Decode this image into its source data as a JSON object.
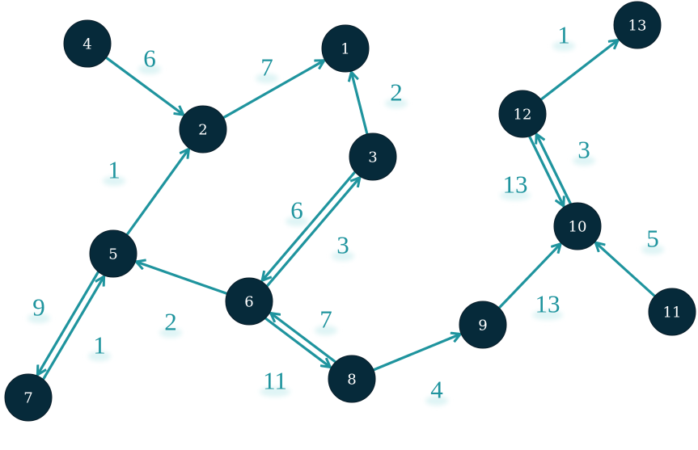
{
  "colors": {
    "node_fill": "#062a3a",
    "node_text": "#ffffff",
    "edge": "#1f949e",
    "weight_text": "#1f949e",
    "background": "#ffffff"
  },
  "graph": {
    "directed": true,
    "nodes": [
      {
        "id": "1",
        "label": "1"
      },
      {
        "id": "2",
        "label": "2"
      },
      {
        "id": "3",
        "label": "3"
      },
      {
        "id": "4",
        "label": "4"
      },
      {
        "id": "5",
        "label": "5"
      },
      {
        "id": "6",
        "label": "6"
      },
      {
        "id": "7",
        "label": "7"
      },
      {
        "id": "8",
        "label": "8"
      },
      {
        "id": "9",
        "label": "9"
      },
      {
        "id": "10",
        "label": "10"
      },
      {
        "id": "11",
        "label": "11"
      },
      {
        "id": "12",
        "label": "12"
      },
      {
        "id": "13",
        "label": "13"
      }
    ],
    "edges": [
      {
        "from": "4",
        "to": "2",
        "weight": "6"
      },
      {
        "from": "2",
        "to": "1",
        "weight": "7"
      },
      {
        "from": "3",
        "to": "1",
        "weight": "2"
      },
      {
        "from": "5",
        "to": "2",
        "weight": "1"
      },
      {
        "from": "6",
        "to": "3",
        "weight": "3"
      },
      {
        "from": "3",
        "to": "6",
        "weight": "6"
      },
      {
        "from": "6",
        "to": "5",
        "weight": "2"
      },
      {
        "from": "5",
        "to": "7",
        "weight": "9"
      },
      {
        "from": "7",
        "to": "5",
        "weight": "1"
      },
      {
        "from": "6",
        "to": "8",
        "weight": "11"
      },
      {
        "from": "8",
        "to": "6",
        "weight": "7"
      },
      {
        "from": "8",
        "to": "9",
        "weight": "4"
      },
      {
        "from": "9",
        "to": "10",
        "weight": "13"
      },
      {
        "from": "11",
        "to": "10",
        "weight": "5"
      },
      {
        "from": "10",
        "to": "12",
        "weight": "3"
      },
      {
        "from": "12",
        "to": "10",
        "weight": "13"
      },
      {
        "from": "12",
        "to": "13",
        "weight": "1"
      }
    ]
  }
}
